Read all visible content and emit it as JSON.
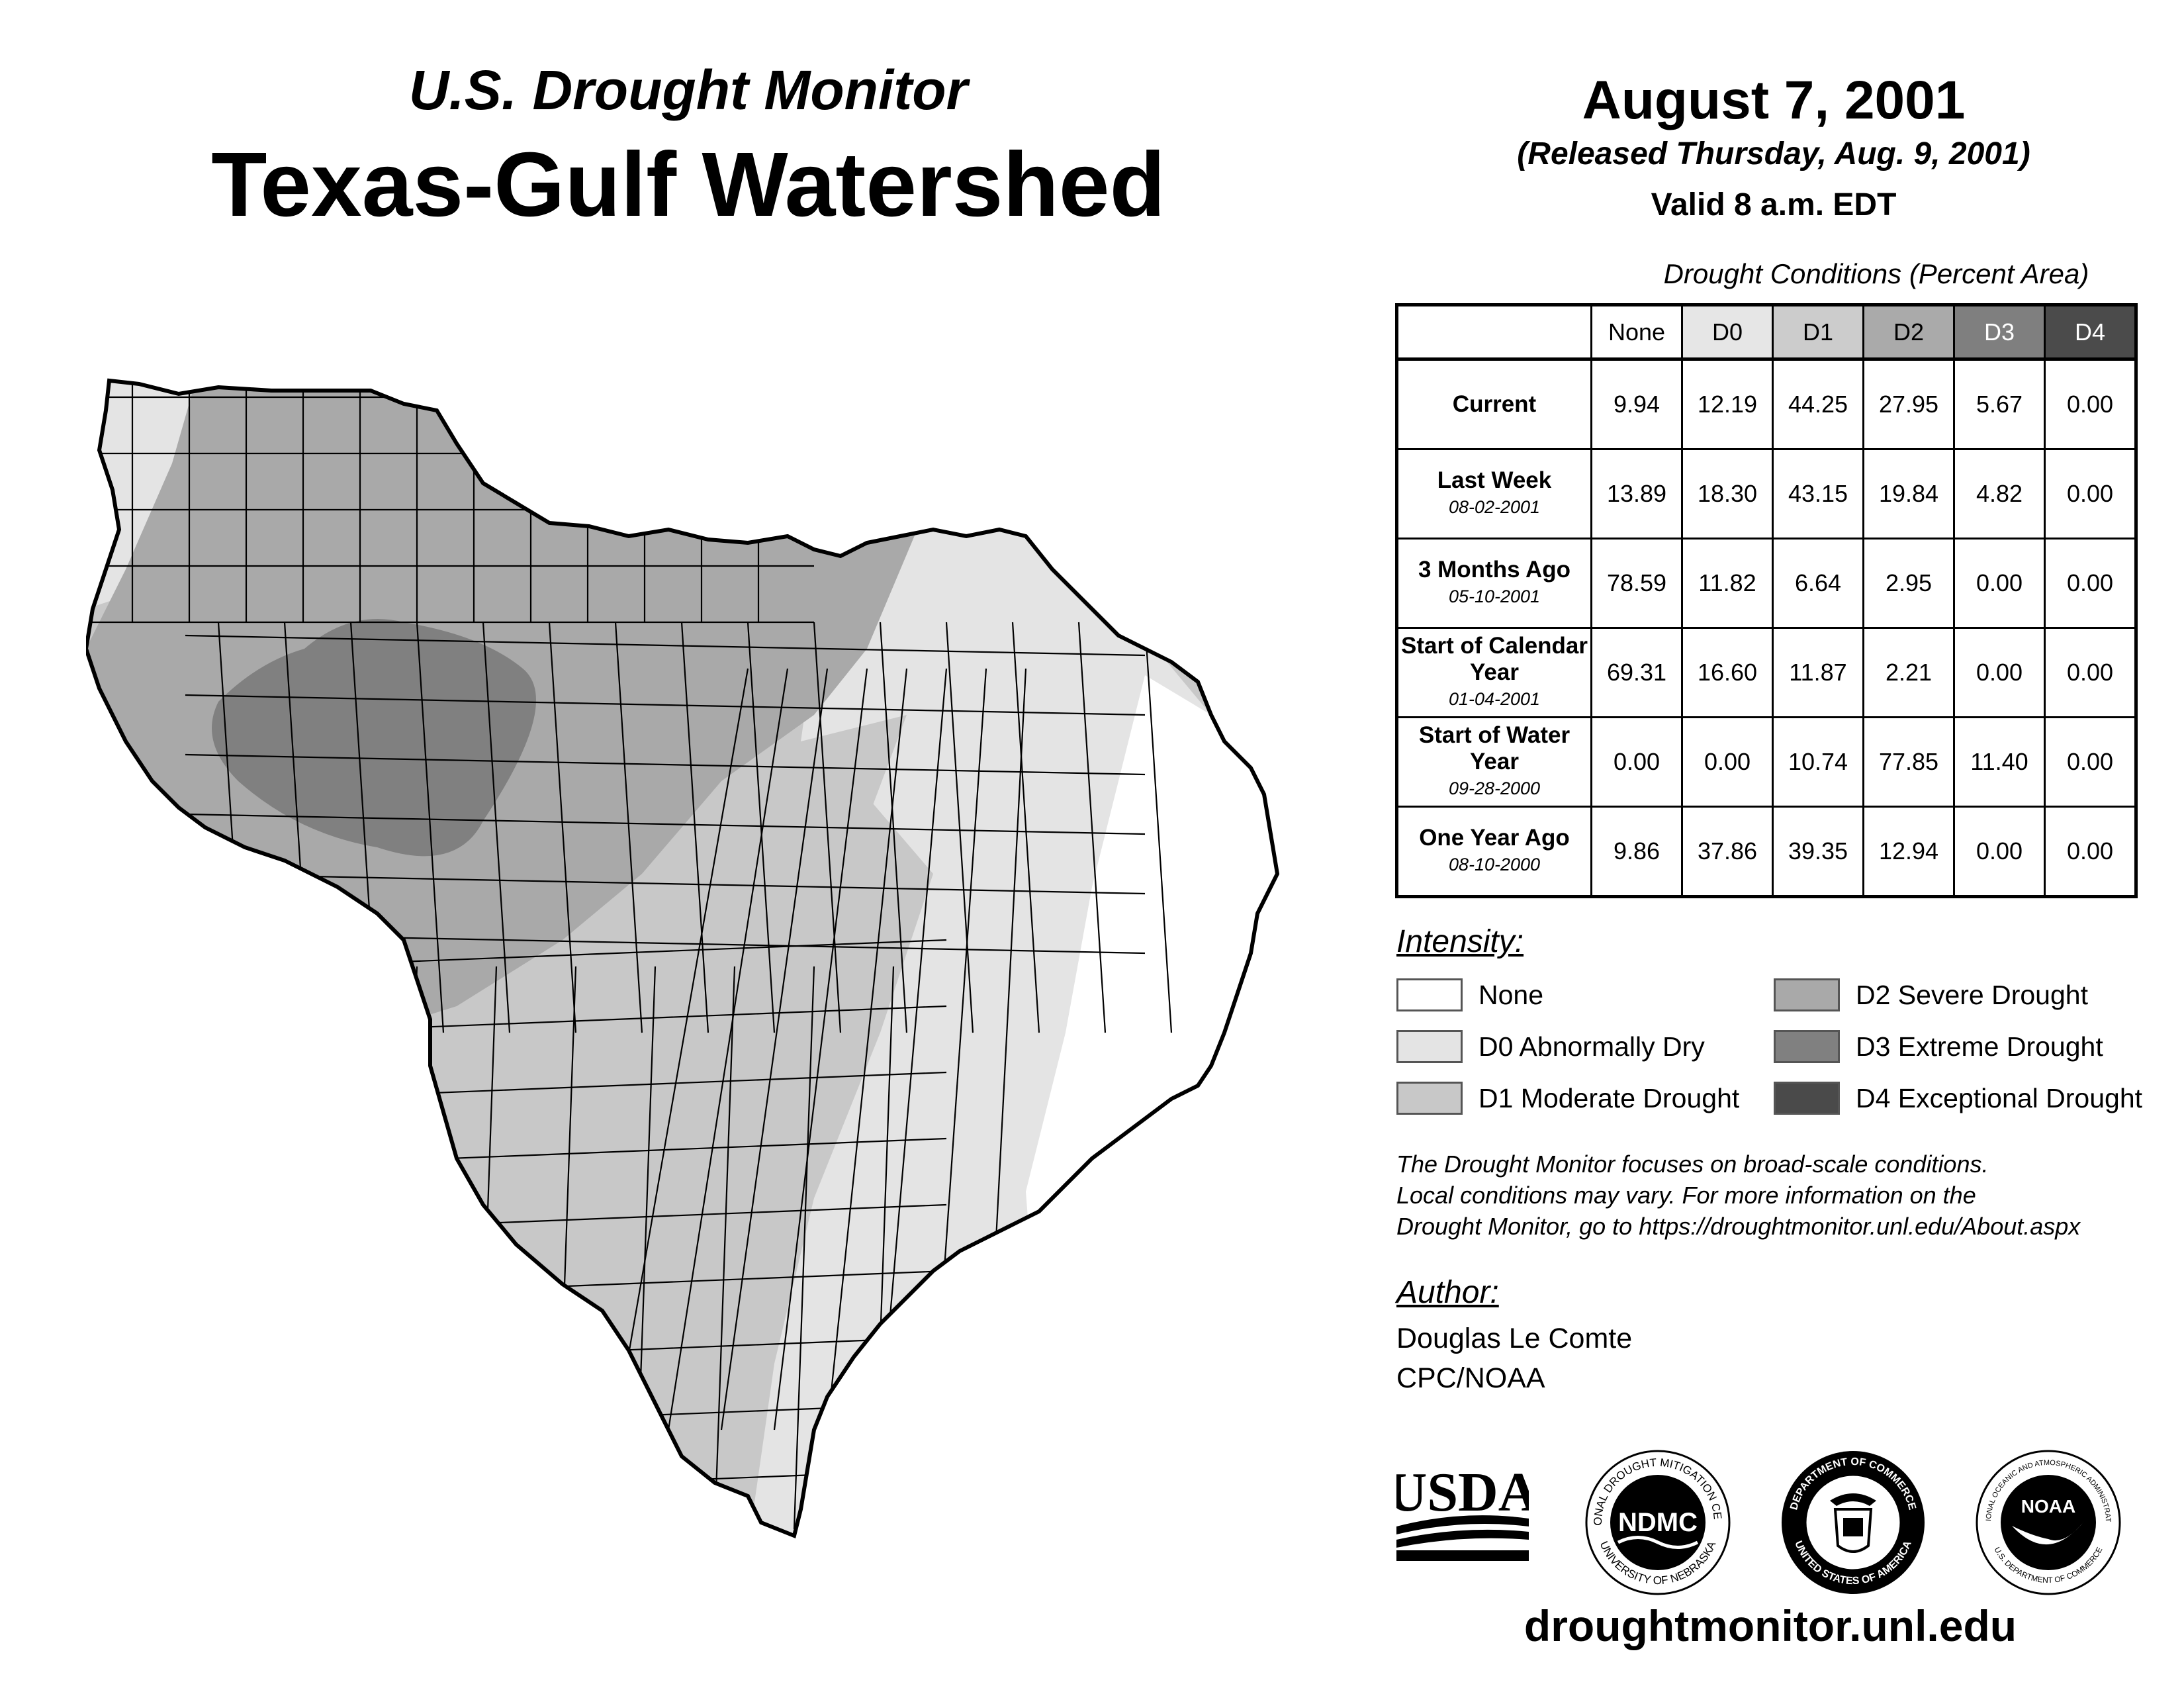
{
  "header": {
    "supertitle": "U.S. Drought Monitor",
    "title": "Texas-Gulf Watershed",
    "date": "August 7, 2001",
    "released": "(Released Thursday, Aug. 9, 2001)",
    "valid": "Valid 8 a.m. EDT"
  },
  "table": {
    "caption": "Drought Conditions (Percent Area)",
    "columns": [
      "None",
      "D0",
      "D1",
      "D2",
      "D3",
      "D4"
    ],
    "column_colors": [
      "#ffffff",
      "#e6e6e6",
      "#cccccc",
      "#aaaaaa",
      "#7f7f7f",
      "#4b4b4b"
    ],
    "rows": [
      {
        "label": "Current",
        "date": "",
        "values": [
          "9.94",
          "12.19",
          "44.25",
          "27.95",
          "5.67",
          "0.00"
        ]
      },
      {
        "label": "Last Week",
        "date": "08-02-2001",
        "values": [
          "13.89",
          "18.30",
          "43.15",
          "19.84",
          "4.82",
          "0.00"
        ]
      },
      {
        "label": "3 Months Ago",
        "date": "05-10-2001",
        "values": [
          "78.59",
          "11.82",
          "6.64",
          "2.95",
          "0.00",
          "0.00"
        ]
      },
      {
        "label": "Start of Calendar Year",
        "date": "01-04-2001",
        "values": [
          "69.31",
          "16.60",
          "11.87",
          "2.21",
          "0.00",
          "0.00"
        ]
      },
      {
        "label": "Start of Water Year",
        "date": "09-28-2000",
        "values": [
          "0.00",
          "0.00",
          "10.74",
          "77.85",
          "11.40",
          "0.00"
        ]
      },
      {
        "label": "One Year Ago",
        "date": "08-10-2000",
        "values": [
          "9.86",
          "37.86",
          "39.35",
          "12.94",
          "0.00",
          "0.00"
        ]
      }
    ]
  },
  "legend": {
    "title": "Intensity:",
    "items": [
      {
        "label": "None",
        "color": "#ffffff"
      },
      {
        "label": "D0 Abnormally Dry",
        "color": "#e4e4e4"
      },
      {
        "label": "D1 Moderate Drought",
        "color": "#c8c8c8"
      },
      {
        "label": "D2 Severe Drought",
        "color": "#a9a9a9"
      },
      {
        "label": "D3 Extreme Drought",
        "color": "#808080"
      },
      {
        "label": "D4 Exceptional Drought",
        "color": "#4a4a4a"
      }
    ]
  },
  "note": {
    "line1": "The Drought Monitor focuses on broad-scale conditions.",
    "line2": "Local conditions may vary. For more information on the",
    "line3": "Drought Monitor, go to https://droughtmonitor.unl.edu/About.aspx"
  },
  "author": {
    "title": "Author:",
    "name": "Douglas Le Comte",
    "org": "CPC/NOAA"
  },
  "logos": {
    "usda": "USDA",
    "ndmc": "NDMC",
    "ndmc_ring_top": "NATIONAL DROUGHT MITIGATION CENTER",
    "ndmc_ring_bottom": "UNIVERSITY OF NEBRASKA",
    "doc_ring_top": "DEPARTMENT OF COMMERCE",
    "doc_ring_bottom": "UNITED STATES OF AMERICA",
    "noaa": "NOAA",
    "noaa_ring_top": "NATIONAL OCEANIC AND ATMOSPHERIC ADMINISTRATION",
    "noaa_ring_bottom": "U.S. DEPARTMENT OF COMMERCE"
  },
  "website": "droughtmonitor.unl.edu",
  "map": {
    "region": "Texas-Gulf Watershed",
    "outline_color": "#000000",
    "icon": "watershed-map"
  }
}
